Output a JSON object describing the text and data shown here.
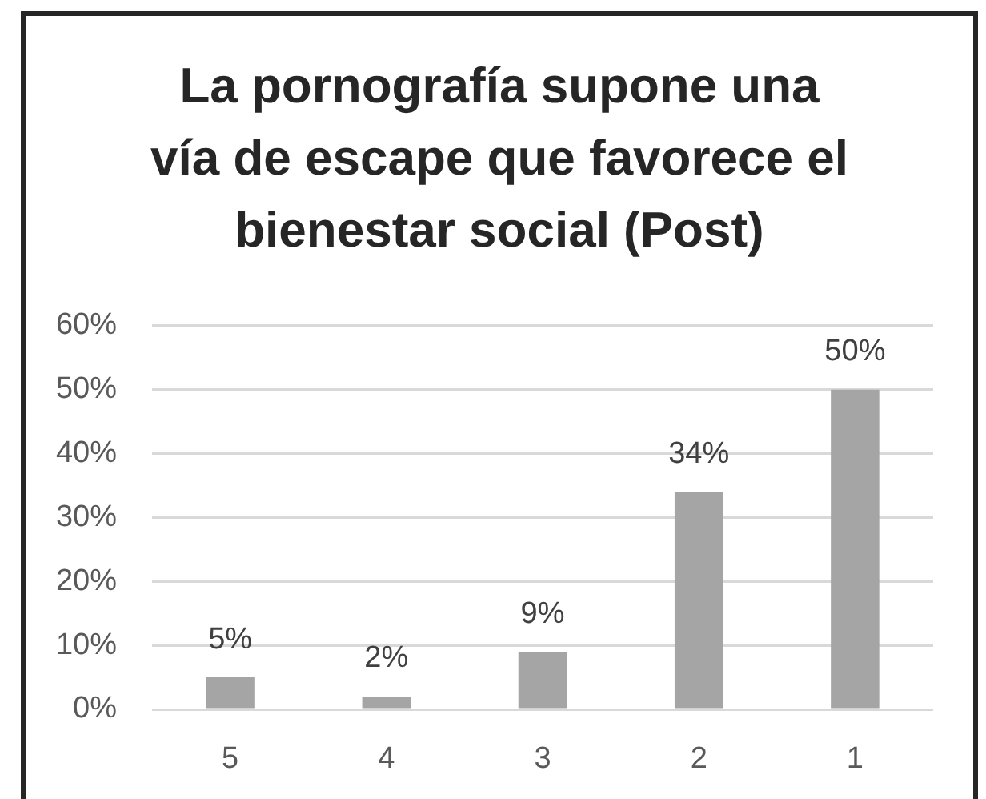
{
  "chart_data": {
    "type": "bar",
    "title": "La pornografía supone una vía de escape que favorece el bienestar social (Post)",
    "categories": [
      "5",
      "4",
      "3",
      "2",
      "1"
    ],
    "values": [
      5,
      2,
      9,
      34,
      50
    ],
    "color": "#a5a5a5",
    "value_labels": [
      "5%",
      "2%",
      "9%",
      "34%",
      "50%"
    ],
    "ylim": [
      0,
      60
    ],
    "yticks": [
      {
        "value": 0,
        "label": "0%"
      },
      {
        "value": 10,
        "label": "10%"
      },
      {
        "value": 20,
        "label": "20%"
      },
      {
        "value": 30,
        "label": "30%"
      },
      {
        "value": 40,
        "label": "40%"
      },
      {
        "value": 50,
        "label": "50%"
      },
      {
        "value": 60,
        "label": "60%"
      }
    ],
    "grid": "y"
  }
}
